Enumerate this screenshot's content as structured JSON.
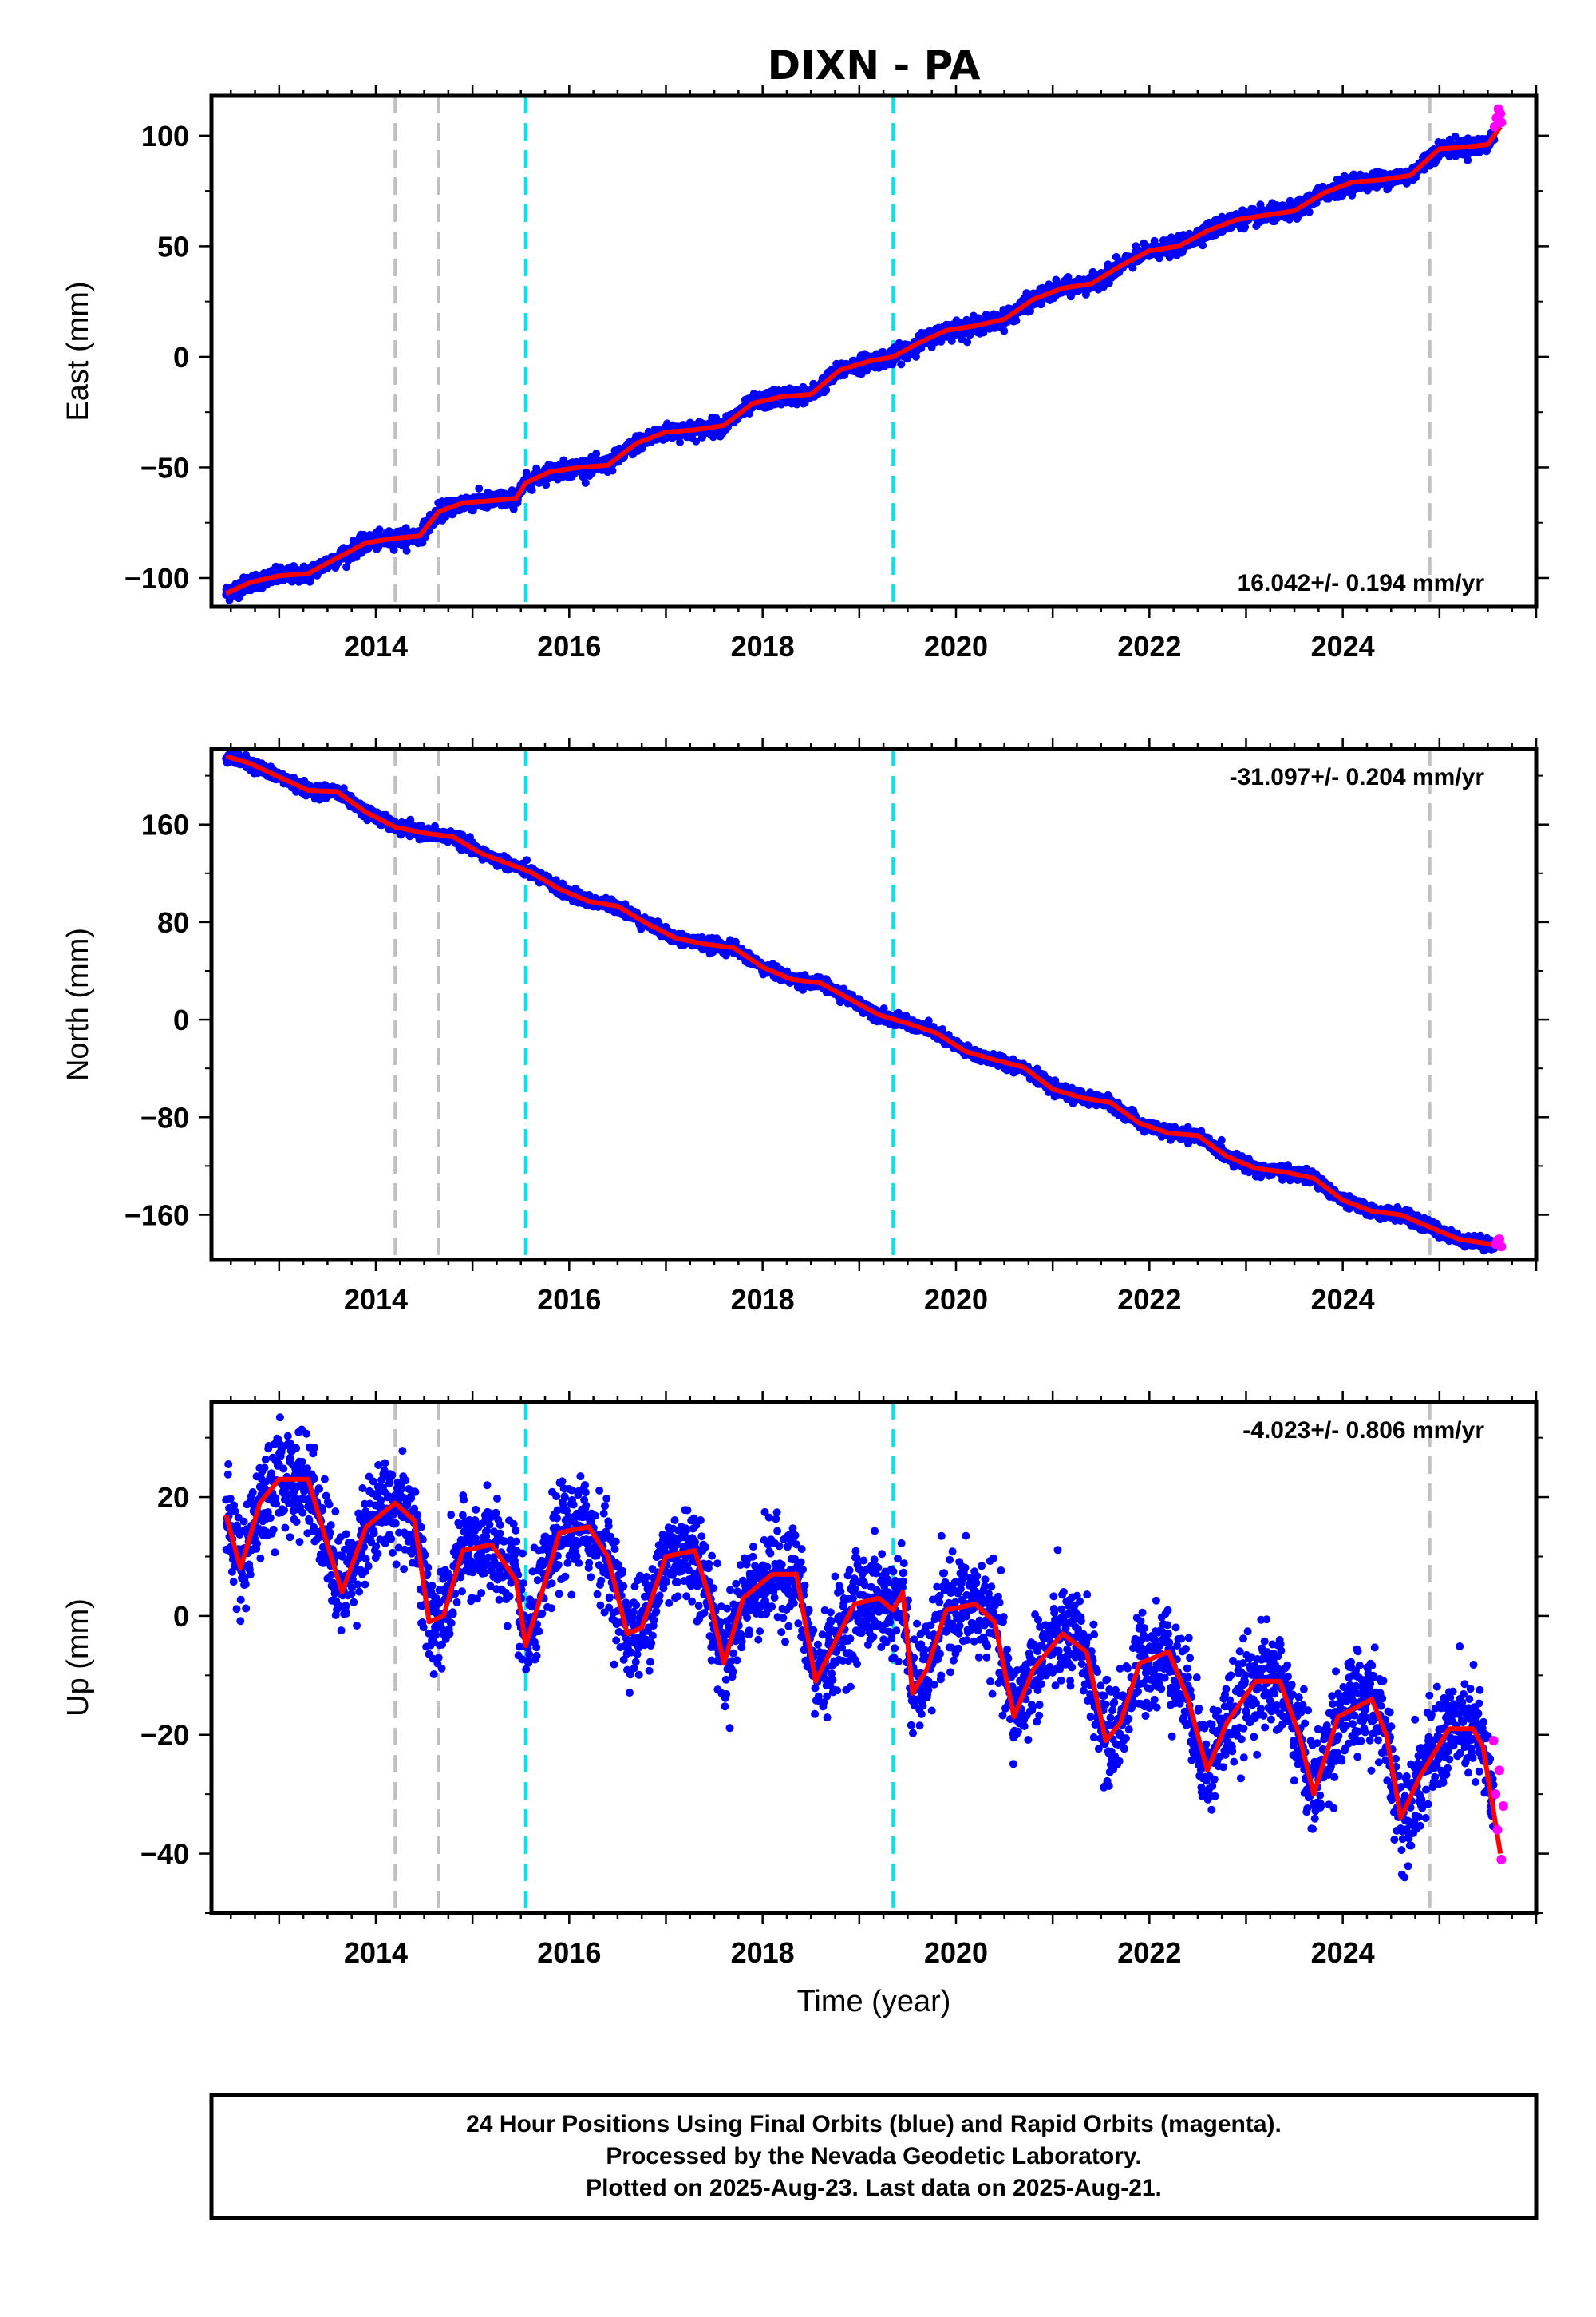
{
  "title": "DIXN - PA",
  "colors": {
    "final_orbits": "#0000ff",
    "rapid_orbits": "#ff00ff",
    "model": "#ff0000",
    "event_gray": "#c0c0c0",
    "event_cyan": "#00e5ee"
  },
  "footer": {
    "lines": [
      "24 Hour Positions Using Final Orbits (blue) and Rapid Orbits (magenta).",
      "Processed by the Nevada Geodetic Laboratory.",
      "Plotted on 2025-Aug-23. Last data on 2025-Aug-21."
    ]
  },
  "chart_data": [
    {
      "type": "scatter",
      "component": "east",
      "ylabel": "East (mm)",
      "xlabel": "",
      "xlim": [
        2012.3,
        2026.0
      ],
      "ylim": [
        -113,
        118
      ],
      "yticks": [
        -100,
        -50,
        0,
        50,
        100
      ],
      "xticks": [
        2014,
        2016,
        2018,
        2020,
        2022,
        2024
      ],
      "rate_label": "16.042+/- 0.194 mm/yr",
      "rate_position": "bottom-right",
      "gray_events": [
        2014.2,
        2014.65,
        2024.9
      ],
      "cyan_events": [
        2015.55,
        2019.35
      ],
      "model": {
        "x": [
          2012.45,
          2012.7,
          2013.0,
          2013.3,
          2013.6,
          2013.9,
          2014.2,
          2014.45,
          2014.65,
          2014.9,
          2015.2,
          2015.45,
          2015.55,
          2015.8,
          2016.1,
          2016.4,
          2016.7,
          2017.0,
          2017.3,
          2017.6,
          2017.9,
          2018.2,
          2018.5,
          2018.8,
          2019.1,
          2019.35,
          2019.6,
          2019.9,
          2020.2,
          2020.5,
          2020.8,
          2021.1,
          2021.4,
          2021.7,
          2022.0,
          2022.3,
          2022.6,
          2022.9,
          2023.2,
          2023.5,
          2023.8,
          2024.1,
          2024.4,
          2024.7,
          2025.0,
          2025.3,
          2025.5,
          2025.63
        ],
        "y": [
          -107,
          -102,
          -99,
          -98,
          -91,
          -84,
          -82,
          -81,
          -70,
          -66,
          -65,
          -64,
          -57,
          -52,
          -50,
          -49,
          -39,
          -34,
          -33,
          -31,
          -21,
          -18,
          -17,
          -6,
          -2,
          0,
          6,
          12,
          14,
          17,
          26,
          31,
          33,
          41,
          48,
          50,
          57,
          62,
          64,
          66,
          74,
          79,
          80,
          82,
          94,
          95,
          96,
          104
        ]
      },
      "rapid": {
        "x": [
          2025.57,
          2025.59,
          2025.61,
          2025.63,
          2025.64
        ],
        "y": [
          104,
          108,
          112,
          110,
          106
        ]
      }
    },
    {
      "type": "scatter",
      "component": "north",
      "ylabel": "North (mm)",
      "xlabel": "",
      "xlim": [
        2012.3,
        2026.0
      ],
      "ylim": [
        -197,
        222
      ],
      "yticks": [
        -160,
        -80,
        0,
        80,
        160
      ],
      "xticks": [
        2014,
        2016,
        2018,
        2020,
        2022,
        2024
      ],
      "rate_label": "-31.097+/- 0.204 mm/yr",
      "rate_position": "top-right",
      "gray_events": [
        2014.2,
        2014.65,
        2024.9
      ],
      "cyan_events": [
        2015.55,
        2019.35
      ],
      "model": {
        "x": [
          2012.45,
          2012.7,
          2013.0,
          2013.3,
          2013.6,
          2013.9,
          2014.2,
          2014.5,
          2014.8,
          2015.1,
          2015.4,
          2015.6,
          2015.9,
          2016.2,
          2016.5,
          2016.8,
          2017.1,
          2017.4,
          2017.7,
          2018.0,
          2018.3,
          2018.6,
          2018.9,
          2019.2,
          2019.5,
          2019.8,
          2020.1,
          2020.4,
          2020.7,
          2021.0,
          2021.3,
          2021.6,
          2021.9,
          2022.2,
          2022.5,
          2022.8,
          2023.1,
          2023.4,
          2023.7,
          2024.0,
          2024.3,
          2024.6,
          2024.9,
          2025.2,
          2025.45,
          2025.63
        ],
        "y": [
          216,
          210,
          199,
          188,
          187,
          170,
          158,
          153,
          150,
          136,
          127,
          121,
          107,
          97,
          93,
          79,
          67,
          62,
          59,
          43,
          33,
          30,
          17,
          4,
          -3,
          -11,
          -26,
          -33,
          -39,
          -57,
          -64,
          -68,
          -85,
          -93,
          -95,
          -112,
          -122,
          -125,
          -130,
          -148,
          -157,
          -160,
          -170,
          -180,
          -183,
          -186
        ]
      },
      "rapid": {
        "x": [
          2025.58,
          2025.6,
          2025.62,
          2025.64
        ],
        "y": [
          -184,
          -181,
          -180,
          -186
        ]
      }
    },
    {
      "type": "scatter",
      "component": "up",
      "ylabel": "Up (mm)",
      "xlabel": "Time (year)",
      "xlim": [
        2012.3,
        2026.0
      ],
      "ylim": [
        -50,
        36
      ],
      "yticks": [
        -40,
        -20,
        0,
        20
      ],
      "xticks": [
        2014,
        2016,
        2018,
        2020,
        2022,
        2024
      ],
      "rate_label": "-4.023+/- 0.806 mm/yr",
      "rate_position": "top-right",
      "gray_events": [
        2014.2,
        2014.65,
        2024.9
      ],
      "cyan_events": [
        2015.55,
        2019.35
      ],
      "model": {
        "x": [
          2012.45,
          2012.6,
          2012.8,
          2013.0,
          2013.3,
          2013.5,
          2013.65,
          2013.9,
          2014.2,
          2014.4,
          2014.55,
          2014.7,
          2014.9,
          2015.2,
          2015.45,
          2015.55,
          2015.7,
          2015.9,
          2016.2,
          2016.4,
          2016.6,
          2016.75,
          2017.0,
          2017.3,
          2017.45,
          2017.6,
          2017.8,
          2018.1,
          2018.35,
          2018.55,
          2018.7,
          2018.95,
          2019.2,
          2019.35,
          2019.45,
          2019.55,
          2019.7,
          2019.9,
          2020.2,
          2020.4,
          2020.6,
          2020.8,
          2021.1,
          2021.35,
          2021.55,
          2021.7,
          2021.9,
          2022.2,
          2022.4,
          2022.6,
          2022.8,
          2023.1,
          2023.35,
          2023.55,
          2023.7,
          2023.95,
          2024.3,
          2024.45,
          2024.6,
          2024.8,
          2025.1,
          2025.35,
          2025.45,
          2025.55,
          2025.63
        ],
        "y": [
          17,
          8,
          19,
          23,
          23,
          12,
          4,
          15,
          19,
          16,
          -1,
          0,
          11,
          12,
          6,
          -5,
          3,
          14,
          15,
          10,
          -3,
          -2,
          10,
          11,
          3,
          -8,
          3,
          7,
          7,
          -11,
          -6,
          2,
          3,
          1,
          4,
          -13,
          -9,
          1,
          2,
          -1,
          -17,
          -9,
          -3,
          -6,
          -21,
          -18,
          -8,
          -6,
          -14,
          -26,
          -18,
          -11,
          -11,
          -20,
          -30,
          -17,
          -14,
          -20,
          -34,
          -27,
          -19,
          -19,
          -22,
          -32,
          -40
        ]
      },
      "rapid": {
        "x": [
          2025.56,
          2025.58,
          2025.6,
          2025.62,
          2025.64,
          2025.66
        ],
        "y": [
          -21,
          -30,
          -36,
          -26,
          -41,
          -32
        ]
      }
    }
  ]
}
